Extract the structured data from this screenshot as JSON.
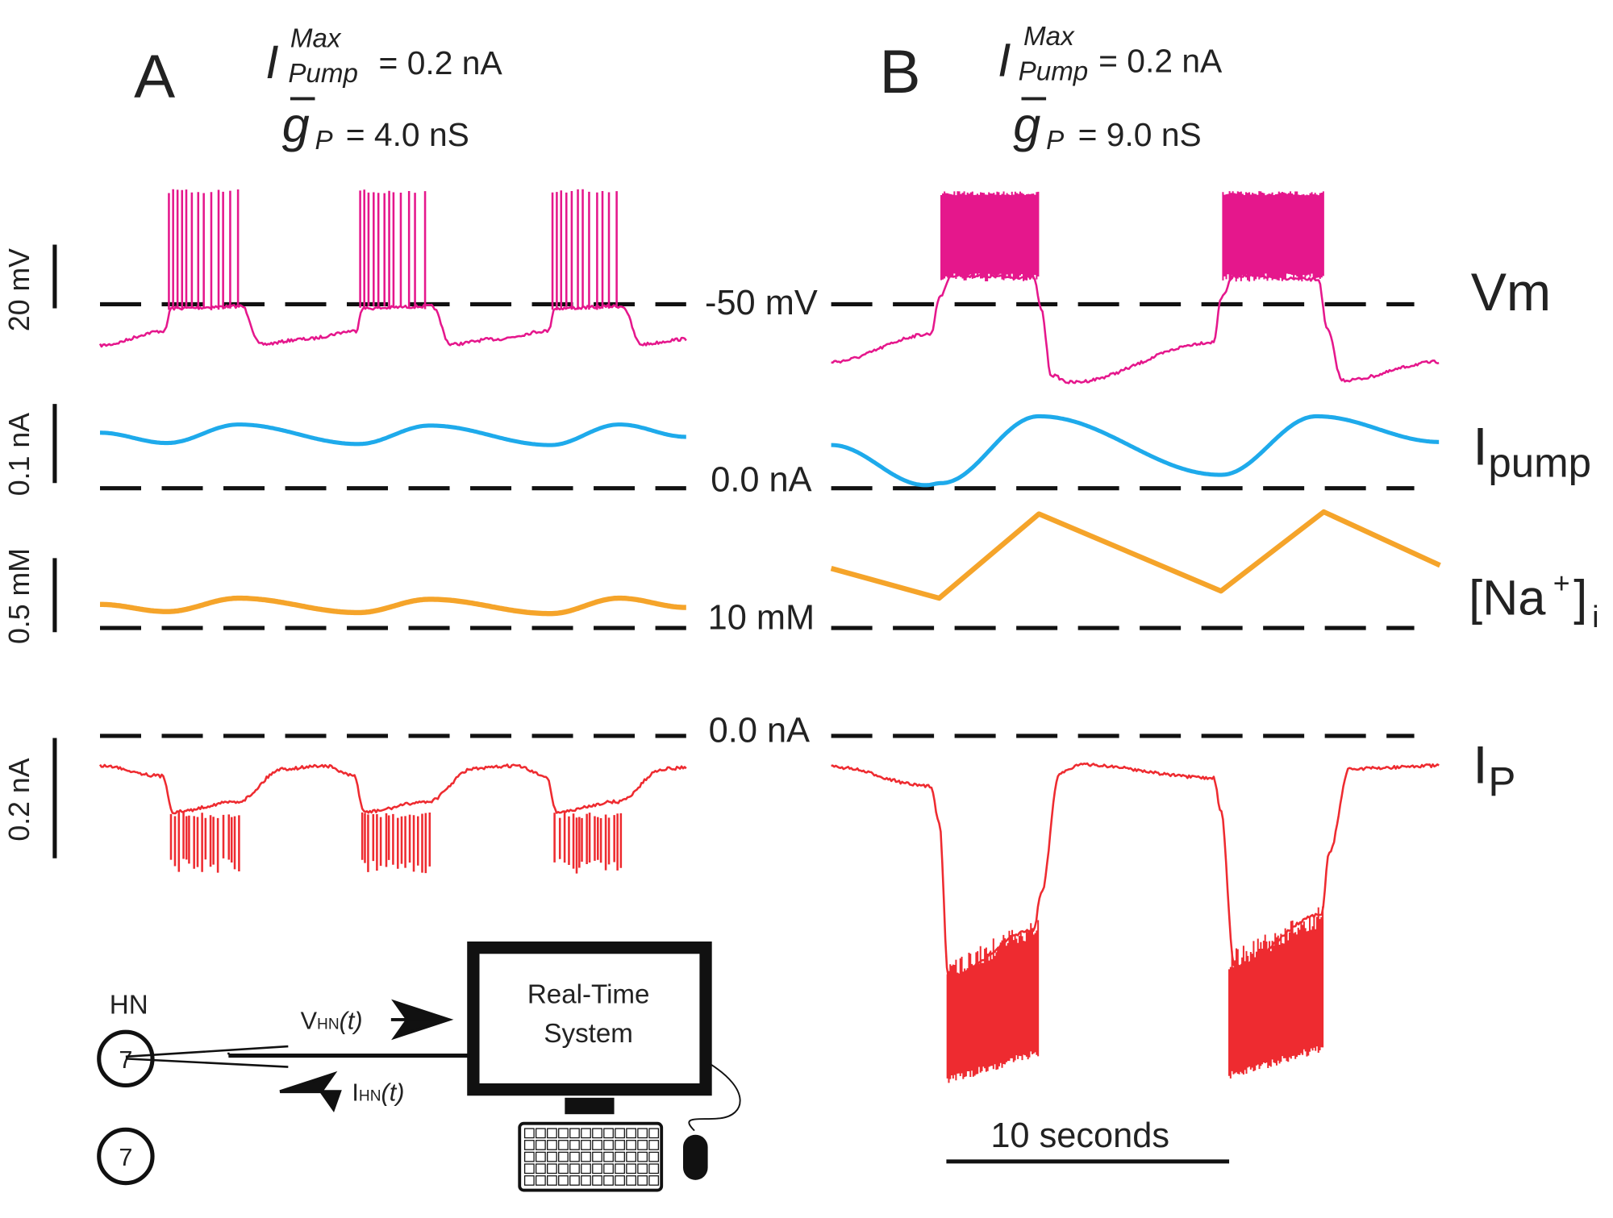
{
  "panels": [
    {
      "label": "A",
      "pump_symbol": "I",
      "pump_sup": "Max",
      "pump_sub": "Pump",
      "pump_value": "= 0.2 nA",
      "g_symbol": "g",
      "g_sub": "P",
      "g_value": "= 4.0 nS"
    },
    {
      "label": "B",
      "pump_symbol": "I",
      "pump_sup": "Max",
      "pump_sub": "Pump",
      "pump_value": "= 0.2 nA",
      "g_symbol": "g",
      "g_sub": "P",
      "g_value": "= 9.0 nS"
    }
  ],
  "scale_bars": [
    "20 mV",
    "0.1 nA",
    "0.5 mM",
    "0.2 nA"
  ],
  "reference_levels": [
    "-50 mV",
    "0.0 nA",
    "10 mM",
    "0.0 nA"
  ],
  "trace_labels": {
    "vm": "Vm",
    "ipump": "I",
    "ipump_sub": "pump",
    "na": "[Na",
    "na_sup": "+",
    "na_close": "]",
    "na_sub": "i",
    "ip": "I",
    "ip_sub": "P"
  },
  "time_scale": "10 seconds",
  "setup": {
    "neuron_label": "HN",
    "neuron_1": "7",
    "neuron_2": "7",
    "v_signal": "V",
    "v_sub": "HN",
    "v_arg": "(t)",
    "i_signal": "I",
    "i_sub": "HN",
    "i_arg": "(t)",
    "system_line1": "Real-Time",
    "system_line2": "System"
  }
}
